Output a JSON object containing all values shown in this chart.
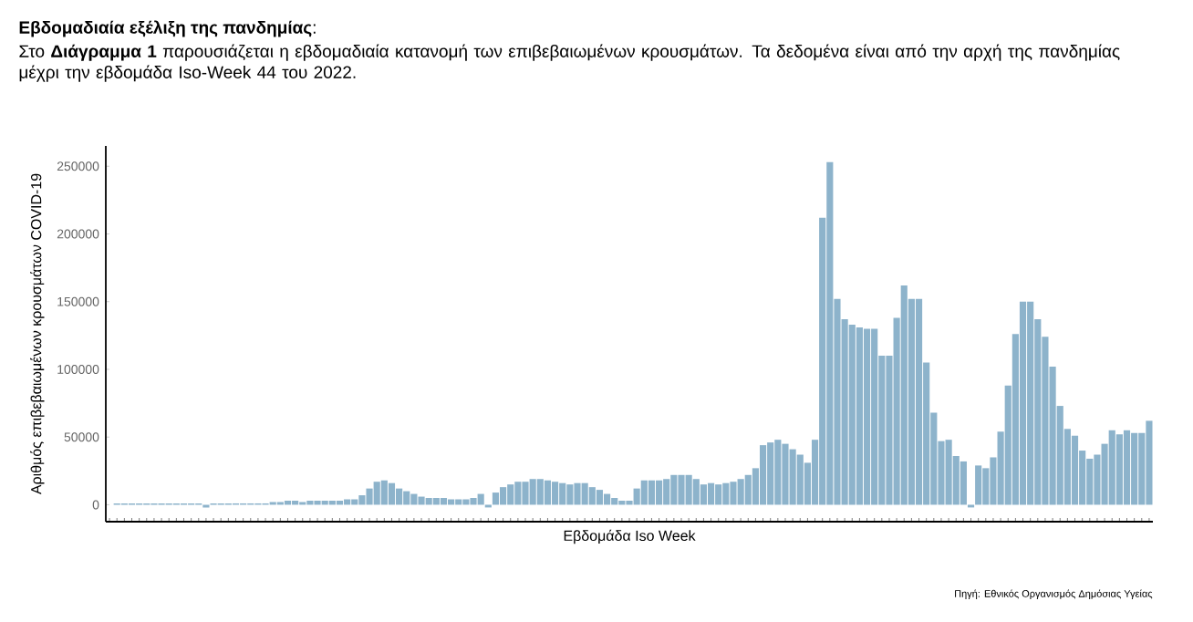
{
  "chart_data": {
    "type": "bar",
    "title": "**Εβδομαδιαία εξέλιξη της πανδημίας**:",
    "subtitle": "Στο **Διάγραμμα 1** παρουσιάζεται η εβδομαδιαία κατανομή των επιβεβαιωμένων κρουσμάτων. Τα δεδομένα είναι από την αρχή της πανδημίας μέχρι την εβδομάδα Iso-Week 44 του 2022.",
    "xlabel": "Εβδομάδα Iso Week",
    "ylabel": "Αριθμός επιβεβαιωμένων κρουσμάτων COVID-19",
    "annotations": [
      "Πηγή: Εθνικός Οργανισμός Δημόσιας Υγείας"
    ],
    "categories": [
      null,
      null,
      null,
      null,
      null,
      null,
      null,
      null,
      null,
      null,
      null,
      null,
      null,
      null,
      null,
      null,
      null,
      null,
      null,
      null,
      null,
      null,
      null,
      null,
      null,
      null,
      null,
      null,
      null,
      null,
      null,
      null,
      null,
      null,
      null,
      null,
      null,
      null,
      null,
      null,
      null,
      null,
      null,
      null,
      null,
      null,
      null,
      null,
      null,
      null,
      null,
      null,
      null,
      null,
      null,
      null,
      null,
      null,
      null,
      null,
      null,
      null,
      null,
      null,
      null,
      null,
      null,
      null,
      null,
      null,
      null,
      null,
      null,
      null,
      null,
      null,
      null,
      null,
      null,
      null,
      null,
      null,
      null,
      null,
      null,
      null,
      null,
      null,
      null,
      null,
      null,
      null,
      null,
      null,
      null,
      null,
      null,
      null,
      null,
      null,
      null,
      null,
      null,
      null,
      null,
      null,
      null,
      null,
      null,
      null,
      null,
      null,
      null,
      null,
      null,
      null,
      null,
      null,
      null,
      null,
      null,
      null,
      null,
      null,
      null,
      null,
      null,
      null,
      null,
      null,
      null,
      null,
      null,
      null,
      null,
      null,
      null,
      null,
      null,
      null,
      null
    ],
    "values": [
      0,
      1000,
      1000,
      1000,
      1000,
      1000,
      1000,
      1000,
      1000,
      1000,
      1000,
      1000,
      1000,
      -2000,
      1000,
      1000,
      1000,
      1000,
      1000,
      1000,
      1000,
      1000,
      2000,
      2000,
      3000,
      3000,
      2000,
      3000,
      3000,
      3000,
      3000,
      3000,
      4000,
      4000,
      7000,
      12000,
      17000,
      18000,
      16000,
      12000,
      10000,
      8000,
      6000,
      5000,
      5000,
      5000,
      4000,
      4000,
      4000,
      5000,
      8000,
      -2000,
      9000,
      13000,
      15000,
      17000,
      17000,
      19000,
      19000,
      18000,
      17000,
      16000,
      15000,
      16000,
      16000,
      13000,
      11000,
      8000,
      5000,
      3000,
      3000,
      12000,
      18000,
      18000,
      18000,
      19000,
      22000,
      22000,
      22000,
      19000,
      15000,
      16000,
      15000,
      16000,
      17000,
      19000,
      22000,
      27000,
      44000,
      46000,
      48000,
      45000,
      41000,
      37000,
      31000,
      48000,
      212000,
      253000,
      152000,
      137000,
      133000,
      131000,
      130000,
      130000,
      110000,
      110000,
      138000,
      162000,
      152000,
      152000,
      105000,
      68000,
      47000,
      48000,
      36000,
      32000,
      -2000,
      29000,
      27000,
      35000,
      54000,
      88000,
      126000,
      150000,
      150000,
      137000,
      124000,
      102000,
      73000,
      56000,
      51000,
      40000,
      34000,
      37000,
      45000,
      55000,
      52000,
      55000,
      53000,
      53000,
      62000
    ],
    "color": "#8db3cb",
    "ylim": [
      -12500,
      265000
    ],
    "yticks": [
      0,
      50000,
      100000,
      150000,
      200000,
      250000
    ]
  }
}
